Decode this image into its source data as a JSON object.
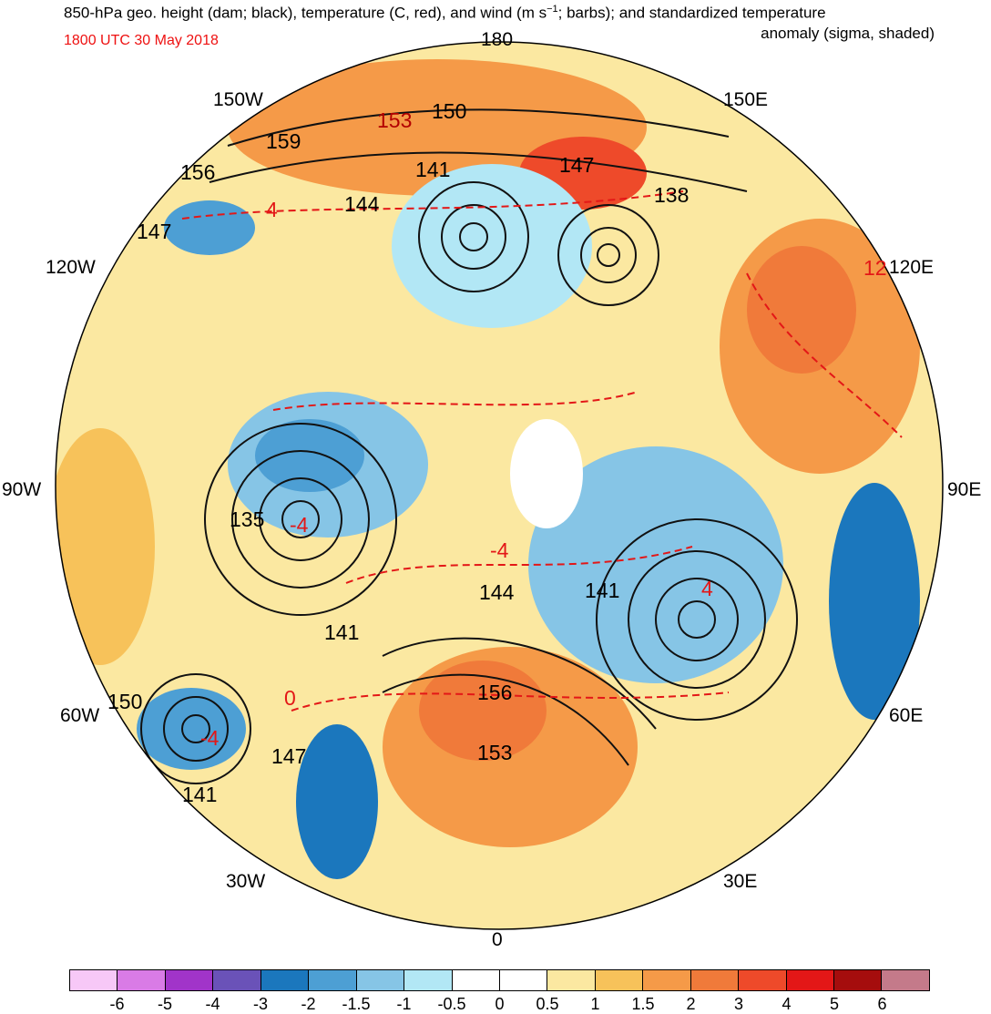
{
  "title": {
    "line1": "850-hPa geo. height (dam; black), temperature (C, red), and wind (m s",
    "sup": "−1",
    "line1_end": "; barbs); and standardized temperature",
    "line2": "anomaly (sigma, shaded)"
  },
  "date": "1800 UTC 30 May 2018",
  "longitude_labels": {
    "top": "180",
    "bottom": "0",
    "left": "90W",
    "right": "90E",
    "upper_left_150": "150W",
    "upper_right_150": "150E",
    "left_120": "120W",
    "right_120": "120E",
    "left_60": "60W",
    "right_60": "60E",
    "bottom_left_30": "30W",
    "bottom_right_30": "30E"
  },
  "height_labels": [
    "159",
    "153",
    "150",
    "147",
    "138",
    "156",
    "147",
    "144",
    "141",
    "135",
    "141",
    "144",
    "141",
    "156",
    "153",
    "150",
    "147",
    "141"
  ],
  "temperature_labels": [
    "4",
    "-4",
    "12",
    "-4",
    "0",
    "4",
    "-4"
  ],
  "colorbar": {
    "colors": [
      "#f7c8f7",
      "#d97be6",
      "#a134c9",
      "#6a52b8",
      "#1b77bd",
      "#4d9fd4",
      "#86c5e6",
      "#b2e7f5",
      "#ffffff",
      "#ffffff",
      "#fbe8a1",
      "#f7c25a",
      "#f59a48",
      "#f07a3a",
      "#ee4a2a",
      "#e31717",
      "#a50d0d",
      "#c47a8a"
    ],
    "ticks": [
      "-6",
      "-5",
      "-4",
      "-3",
      "-2",
      "-1.5",
      "-1",
      "-0.5",
      "0",
      "0.5",
      "1",
      "1.5",
      "2",
      "3",
      "4",
      "5",
      "6"
    ]
  }
}
